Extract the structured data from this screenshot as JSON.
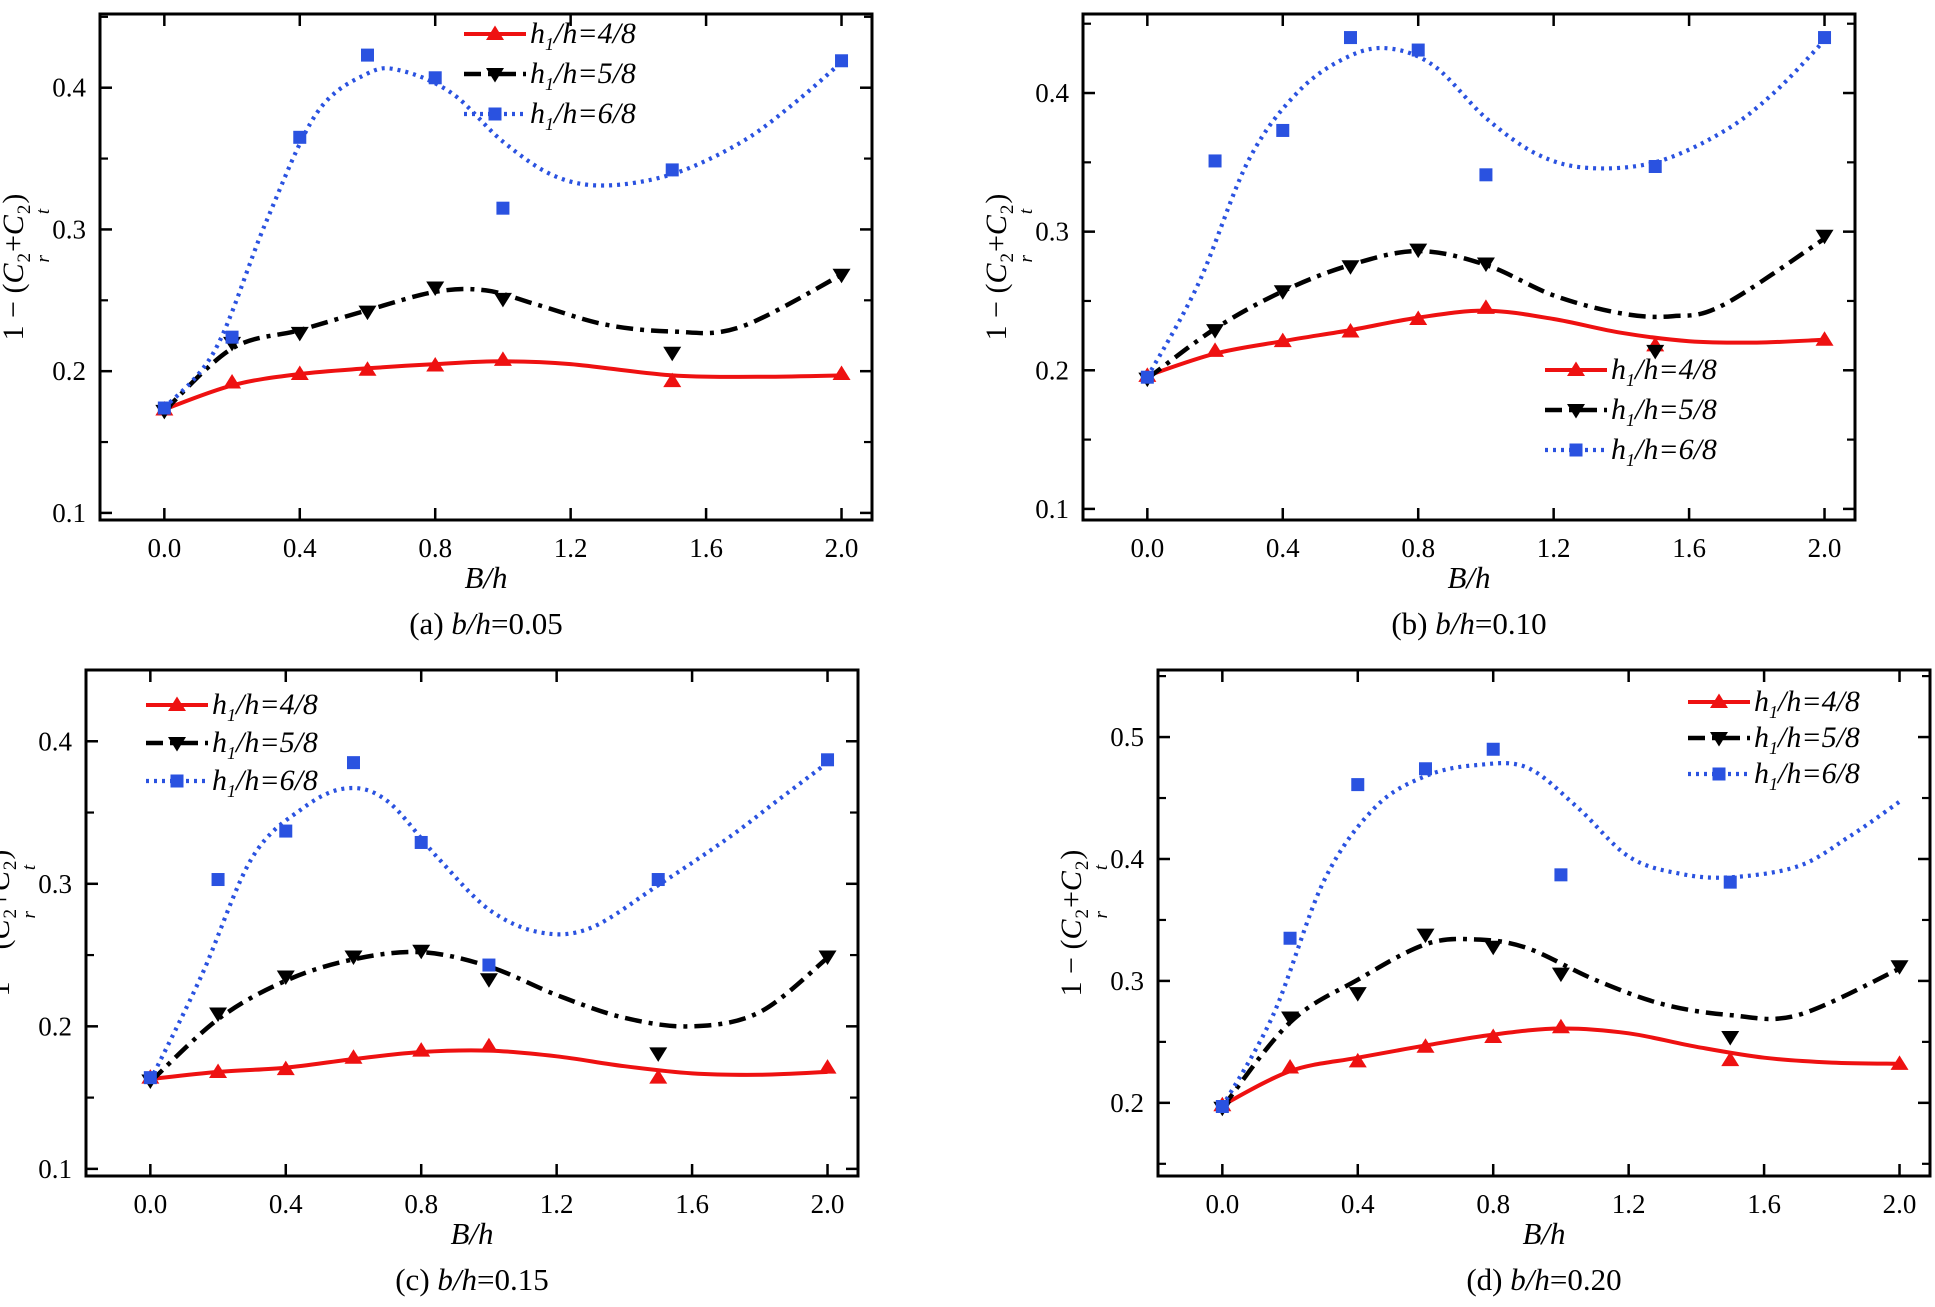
{
  "colors": {
    "red": "#ee1111",
    "black": "#000000",
    "blue": "#2a52e0",
    "axis": "#000000",
    "background": "#ffffff"
  },
  "legend_text": {
    "var": "h",
    "sub": "1",
    "rest_prefix": "/h="
  },
  "ylabel_parts": {
    "pre": "1 − (",
    "c1": "C",
    "sup1": "2",
    "sub1": "r",
    "plus": "+",
    "c2": "C",
    "sup2": "2",
    "sub2": "t",
    "post": ")"
  },
  "chart_data": [
    {
      "id": "a",
      "type": "line",
      "title": "",
      "xlabel": "B/h",
      "caption": {
        "index": "(a)",
        "var": "b/h",
        "value": "=0.05"
      },
      "x_ticks": [
        "0.0",
        "0.4",
        "0.8",
        "1.2",
        "1.6",
        "2.0"
      ],
      "x_tick_values": [
        0,
        0.4,
        0.8,
        1.2,
        1.6,
        2.0
      ],
      "y_ticks": [
        "0.1",
        "0.2",
        "0.3",
        "0.4"
      ],
      "y_tick_values": [
        0.1,
        0.2,
        0.3,
        0.4
      ],
      "y_minor_step": 0.05,
      "xlim": [
        -0.19,
        2.09
      ],
      "ylim": [
        0.095,
        0.452
      ],
      "grid": false,
      "legend_pos": {
        "x": 462,
        "y": 14,
        "pitch": 40
      },
      "offset_x": 0,
      "x": [
        0,
        0.2,
        0.4,
        0.6,
        0.8,
        1.0,
        1.5,
        2.0
      ],
      "series": [
        {
          "name": "h1/h=4/8",
          "fraction": "4/8",
          "color": "red",
          "marker": "triangle-up",
          "line": "solid",
          "y": [
            0.173,
            0.192,
            0.198,
            0.201,
            0.204,
            0.208,
            0.193,
            0.198
          ],
          "curve": [
            [
              0,
              0.173
            ],
            [
              0.2,
              0.19
            ],
            [
              0.4,
              0.198
            ],
            [
              0.6,
              0.202
            ],
            [
              0.8,
              0.205
            ],
            [
              1.0,
              0.207
            ],
            [
              1.2,
              0.205
            ],
            [
              1.5,
              0.197
            ],
            [
              1.75,
              0.196
            ],
            [
              2.0,
              0.197
            ]
          ]
        },
        {
          "name": "h1/h=5/8",
          "fraction": "5/8",
          "color": "black",
          "marker": "triangle-down",
          "line": "dashdot",
          "y": [
            0.172,
            0.22,
            0.227,
            0.242,
            0.259,
            0.251,
            0.213,
            0.268
          ],
          "curve": [
            [
              0,
              0.172
            ],
            [
              0.2,
              0.216
            ],
            [
              0.4,
              0.229
            ],
            [
              0.6,
              0.243
            ],
            [
              0.8,
              0.256
            ],
            [
              0.95,
              0.257
            ],
            [
              1.1,
              0.247
            ],
            [
              1.3,
              0.233
            ],
            [
              1.5,
              0.228
            ],
            [
              1.7,
              0.231
            ],
            [
              2.0,
              0.268
            ]
          ]
        },
        {
          "name": "h1/h=6/8",
          "fraction": "6/8",
          "color": "blue",
          "marker": "square",
          "line": "dotted",
          "y": [
            0.174,
            0.224,
            0.365,
            0.423,
            0.407,
            0.315,
            0.342,
            0.419
          ],
          "curve": [
            [
              0,
              0.174
            ],
            [
              0.15,
              0.215
            ],
            [
              0.3,
              0.305
            ],
            [
              0.45,
              0.382
            ],
            [
              0.6,
              0.41
            ],
            [
              0.7,
              0.412
            ],
            [
              0.85,
              0.396
            ],
            [
              1.0,
              0.362
            ],
            [
              1.15,
              0.338
            ],
            [
              1.3,
              0.331
            ],
            [
              1.5,
              0.339
            ],
            [
              1.7,
              0.361
            ],
            [
              1.85,
              0.387
            ],
            [
              2.0,
              0.418
            ]
          ]
        }
      ]
    },
    {
      "id": "b",
      "type": "line",
      "title": "",
      "xlabel": "B/h",
      "caption": {
        "index": "(b)",
        "var": "b/h",
        "value": "=0.10"
      },
      "x_ticks": [
        "0.0",
        "0.4",
        "0.8",
        "1.2",
        "1.6",
        "2.0"
      ],
      "x_tick_values": [
        0,
        0.4,
        0.8,
        1.2,
        1.6,
        2.0
      ],
      "y_ticks": [
        "0.1",
        "0.2",
        "0.3",
        "0.4"
      ],
      "y_tick_values": [
        0.1,
        0.2,
        0.3,
        0.4
      ],
      "y_minor_step": 0.05,
      "xlim": [
        -0.19,
        2.09
      ],
      "ylim": [
        0.092,
        0.457
      ],
      "grid": false,
      "legend_pos": {
        "x": 560,
        "y": 350,
        "pitch": 40
      },
      "offset_x": 15,
      "x": [
        0,
        0.2,
        0.4,
        0.6,
        0.8,
        1.0,
        1.5,
        2.0
      ],
      "series": [
        {
          "name": "h1/h=4/8",
          "fraction": "4/8",
          "color": "red",
          "marker": "triangle-up",
          "line": "solid",
          "y": [
            0.196,
            0.214,
            0.221,
            0.228,
            0.237,
            0.245,
            0.218,
            0.222
          ],
          "curve": [
            [
              0,
              0.196
            ],
            [
              0.2,
              0.212
            ],
            [
              0.4,
              0.221
            ],
            [
              0.6,
              0.229
            ],
            [
              0.8,
              0.238
            ],
            [
              1.0,
              0.243
            ],
            [
              1.2,
              0.237
            ],
            [
              1.4,
              0.227
            ],
            [
              1.6,
              0.221
            ],
            [
              1.8,
              0.22
            ],
            [
              2.0,
              0.222
            ]
          ]
        },
        {
          "name": "h1/h=5/8",
          "fraction": "5/8",
          "color": "black",
          "marker": "triangle-down",
          "line": "dashdot",
          "y": [
            0.194,
            0.229,
            0.257,
            0.275,
            0.287,
            0.277,
            0.214,
            0.297
          ],
          "curve": [
            [
              0,
              0.194
            ],
            [
              0.2,
              0.23
            ],
            [
              0.4,
              0.257
            ],
            [
              0.6,
              0.276
            ],
            [
              0.8,
              0.286
            ],
            [
              1.0,
              0.276
            ],
            [
              1.2,
              0.254
            ],
            [
              1.4,
              0.241
            ],
            [
              1.55,
              0.239
            ],
            [
              1.7,
              0.247
            ],
            [
              2.0,
              0.295
            ]
          ]
        },
        {
          "name": "h1/h=6/8",
          "fraction": "6/8",
          "color": "blue",
          "marker": "square",
          "line": "dotted",
          "y": [
            0.195,
            0.351,
            0.373,
            0.44,
            0.431,
            0.341,
            0.347,
            0.44
          ],
          "curve": [
            [
              0,
              0.195
            ],
            [
              0.15,
              0.262
            ],
            [
              0.3,
              0.352
            ],
            [
              0.45,
              0.402
            ],
            [
              0.6,
              0.427
            ],
            [
              0.72,
              0.432
            ],
            [
              0.85,
              0.419
            ],
            [
              1.0,
              0.382
            ],
            [
              1.15,
              0.356
            ],
            [
              1.3,
              0.346
            ],
            [
              1.5,
              0.35
            ],
            [
              1.7,
              0.372
            ],
            [
              1.85,
              0.4
            ],
            [
              2.0,
              0.438
            ]
          ]
        }
      ]
    },
    {
      "id": "c",
      "type": "line",
      "title": "",
      "xlabel": "B/h",
      "caption": {
        "index": "(c)",
        "var": "b/h",
        "value": "=0.15"
      },
      "x_ticks": [
        "0.0",
        "0.4",
        "0.8",
        "1.2",
        "1.6",
        "2.0"
      ],
      "x_tick_values": [
        0,
        0.4,
        0.8,
        1.2,
        1.6,
        2.0
      ],
      "y_ticks": [
        "0.1",
        "0.2",
        "0.3",
        "0.4"
      ],
      "y_tick_values": [
        0.1,
        0.2,
        0.3,
        0.4
      ],
      "y_minor_step": 0.05,
      "xlim": [
        -0.19,
        2.09
      ],
      "ylim": [
        0.095,
        0.45
      ],
      "grid": false,
      "legend_pos": {
        "x": 158,
        "y": 30,
        "pitch": 38
      },
      "offset_x": -14,
      "x": [
        0,
        0.2,
        0.4,
        0.6,
        0.8,
        1.0,
        1.5,
        2.0
      ],
      "series": [
        {
          "name": "h1/h=4/8",
          "fraction": "4/8",
          "color": "red",
          "marker": "triangle-up",
          "line": "solid",
          "y": [
            0.164,
            0.168,
            0.17,
            0.178,
            0.183,
            0.186,
            0.164,
            0.171
          ],
          "curve": [
            [
              0,
              0.163
            ],
            [
              0.2,
              0.168
            ],
            [
              0.4,
              0.171
            ],
            [
              0.6,
              0.177
            ],
            [
              0.8,
              0.182
            ],
            [
              1.0,
              0.183
            ],
            [
              1.2,
              0.179
            ],
            [
              1.4,
              0.172
            ],
            [
              1.6,
              0.167
            ],
            [
              1.8,
              0.166
            ],
            [
              2.0,
              0.168
            ]
          ]
        },
        {
          "name": "h1/h=5/8",
          "fraction": "5/8",
          "color": "black",
          "marker": "triangle-down",
          "line": "dashdot",
          "y": [
            0.162,
            0.209,
            0.235,
            0.249,
            0.253,
            0.233,
            0.181,
            0.249
          ],
          "curve": [
            [
              0,
              0.161
            ],
            [
              0.2,
              0.205
            ],
            [
              0.4,
              0.232
            ],
            [
              0.6,
              0.247
            ],
            [
              0.8,
              0.252
            ],
            [
              1.0,
              0.242
            ],
            [
              1.2,
              0.222
            ],
            [
              1.4,
              0.206
            ],
            [
              1.6,
              0.2
            ],
            [
              1.8,
              0.21
            ],
            [
              2.0,
              0.248
            ]
          ]
        },
        {
          "name": "h1/h=6/8",
          "fraction": "6/8",
          "color": "blue",
          "marker": "square",
          "line": "dotted",
          "y": [
            0.164,
            0.303,
            0.337,
            0.385,
            0.329,
            0.243,
            0.303,
            0.387
          ],
          "curve": [
            [
              0,
              0.162
            ],
            [
              0.15,
              0.235
            ],
            [
              0.3,
              0.318
            ],
            [
              0.45,
              0.353
            ],
            [
              0.58,
              0.367
            ],
            [
              0.7,
              0.358
            ],
            [
              0.85,
              0.318
            ],
            [
              1.0,
              0.282
            ],
            [
              1.15,
              0.266
            ],
            [
              1.3,
              0.269
            ],
            [
              1.5,
              0.299
            ],
            [
              1.7,
              0.331
            ],
            [
              1.85,
              0.358
            ],
            [
              2.0,
              0.385
            ]
          ]
        }
      ]
    },
    {
      "id": "d",
      "type": "line",
      "title": "",
      "xlabel": "B/h",
      "caption": {
        "index": "(d)",
        "var": "b/h",
        "value": "=0.20"
      },
      "x_ticks": [
        "0.0",
        "0.4",
        "0.8",
        "1.2",
        "1.6",
        "2.0"
      ],
      "x_tick_values": [
        0,
        0.4,
        0.8,
        1.2,
        1.6,
        2.0
      ],
      "y_ticks": [
        "0.2",
        "0.3",
        "0.4",
        "0.5"
      ],
      "y_tick_values": [
        0.2,
        0.3,
        0.4,
        0.5
      ],
      "y_minor_step": 0.05,
      "xlim": [
        -0.19,
        2.09
      ],
      "ylim": [
        0.14,
        0.555
      ],
      "grid": false,
      "legend_pos": {
        "x": 628,
        "y": 28,
        "pitch": 36
      },
      "offset_x": 90,
      "x": [
        0,
        0.2,
        0.4,
        0.6,
        0.8,
        1.0,
        1.5,
        2.0
      ],
      "series": [
        {
          "name": "h1/h=4/8",
          "fraction": "4/8",
          "color": "red",
          "marker": "triangle-up",
          "line": "solid",
          "y": [
            0.198,
            0.229,
            0.234,
            0.246,
            0.254,
            0.262,
            0.235,
            0.232
          ],
          "curve": [
            [
              0,
              0.198
            ],
            [
              0.2,
              0.226
            ],
            [
              0.4,
              0.237
            ],
            [
              0.6,
              0.247
            ],
            [
              0.8,
              0.256
            ],
            [
              1.0,
              0.261
            ],
            [
              1.2,
              0.257
            ],
            [
              1.4,
              0.246
            ],
            [
              1.6,
              0.237
            ],
            [
              1.8,
              0.233
            ],
            [
              2.0,
              0.232
            ]
          ]
        },
        {
          "name": "h1/h=5/8",
          "fraction": "5/8",
          "color": "black",
          "marker": "triangle-down",
          "line": "dashdot",
          "y": [
            0.196,
            0.27,
            0.29,
            0.338,
            0.328,
            0.306,
            0.254,
            0.312
          ],
          "curve": [
            [
              0,
              0.196
            ],
            [
              0.2,
              0.266
            ],
            [
              0.4,
              0.301
            ],
            [
              0.6,
              0.33
            ],
            [
              0.75,
              0.334
            ],
            [
              0.9,
              0.327
            ],
            [
              1.1,
              0.301
            ],
            [
              1.3,
              0.281
            ],
            [
              1.5,
              0.272
            ],
            [
              1.7,
              0.272
            ],
            [
              2.0,
              0.31
            ]
          ]
        },
        {
          "name": "h1/h=6/8",
          "fraction": "6/8",
          "color": "blue",
          "marker": "square",
          "line": "dotted",
          "y": [
            0.197,
            0.335,
            0.461,
            0.474,
            0.49,
            0.387,
            0.381,
            null
          ],
          "curve": [
            [
              0,
              0.197
            ],
            [
              0.15,
              0.272
            ],
            [
              0.3,
              0.382
            ],
            [
              0.45,
              0.442
            ],
            [
              0.6,
              0.468
            ],
            [
              0.75,
              0.477
            ],
            [
              0.9,
              0.475
            ],
            [
              1.05,
              0.442
            ],
            [
              1.2,
              0.402
            ],
            [
              1.35,
              0.388
            ],
            [
              1.5,
              0.385
            ],
            [
              1.7,
              0.394
            ],
            [
              1.85,
              0.418
            ],
            [
              2.0,
              0.447
            ]
          ]
        }
      ]
    }
  ]
}
